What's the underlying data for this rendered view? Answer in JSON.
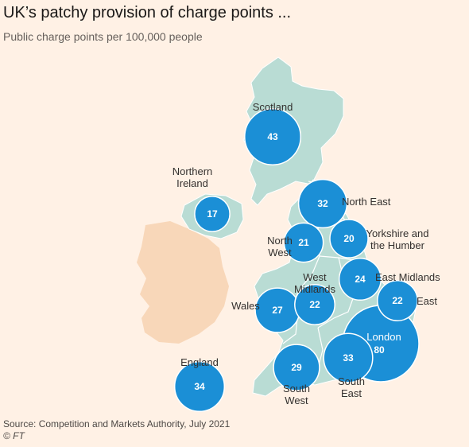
{
  "title": "UK’s patchy provision of charge points ...",
  "subtitle": "Public charge points per 100,000 people",
  "source": "Source: Competition and Markets Authority, July 2021",
  "credit": "© FT",
  "colors": {
    "background": "#fff1e5",
    "uk_land": "#b9dcd4",
    "ireland_land": "#f8d7b9",
    "bubble": "#1b8fd6",
    "bubble_stroke": "#ffffff"
  },
  "regions": [
    {
      "id": "scotland",
      "name": "Scotland",
      "value": 43
    },
    {
      "id": "northern-ireland",
      "name": "Northern Ireland",
      "label_lines": [
        "Northern",
        "Ireland"
      ],
      "value": 17
    },
    {
      "id": "north-east",
      "name": "North East",
      "value": 32
    },
    {
      "id": "north-west",
      "name": "North West",
      "label_lines": [
        "North",
        "West"
      ],
      "value": 21
    },
    {
      "id": "yorkshire",
      "name": "Yorkshire and the Humber",
      "label_lines": [
        "Yorkshire and",
        "the Humber"
      ],
      "value": 20
    },
    {
      "id": "east-midlands",
      "name": "East Midlands",
      "value": 24
    },
    {
      "id": "west-midlands",
      "name": "West Midlands",
      "label_lines": [
        "West",
        "Midlands"
      ],
      "value": 22
    },
    {
      "id": "wales",
      "name": "Wales",
      "value": 27
    },
    {
      "id": "east",
      "name": "East",
      "value": 22
    },
    {
      "id": "london",
      "name": "London",
      "value": 80
    },
    {
      "id": "south-east",
      "name": "South East",
      "label_lines": [
        "South",
        "East"
      ],
      "value": 33
    },
    {
      "id": "south-west",
      "name": "South West",
      "label_lines": [
        "South",
        "West"
      ],
      "value": 29
    },
    {
      "id": "england",
      "name": "England",
      "value": 34
    }
  ]
}
